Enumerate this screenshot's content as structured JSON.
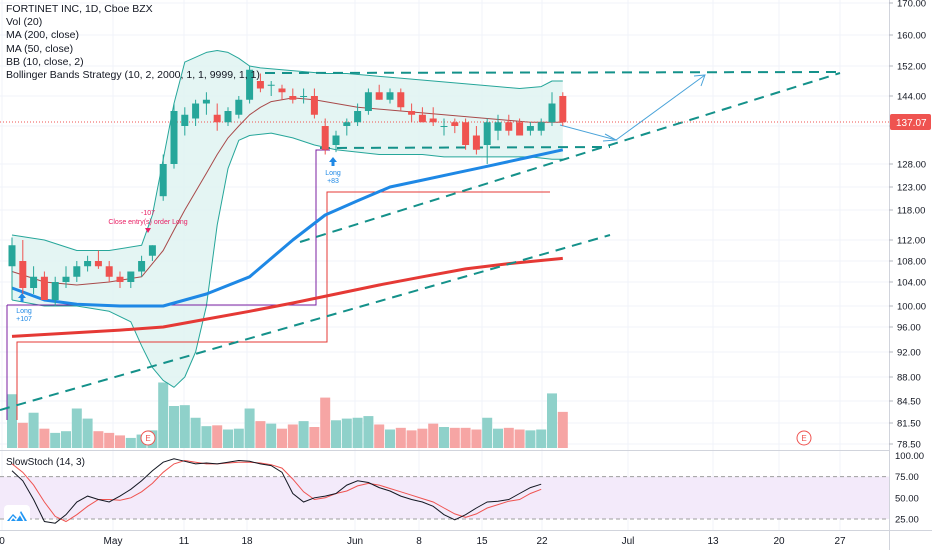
{
  "legend": {
    "symbol": "FORTINET INC, 1D, Cboe BZX",
    "volume": "Vol (20)",
    "ma200": "MA (200, close)",
    "ma50": "MA (50, close)",
    "bb": "BB (10, close, 2)",
    "strategy": "Bollinger Bands Strategy (10, 2, 2000, 1, 1, 9999, 1, 1)"
  },
  "colors": {
    "up": "#26a69a",
    "down": "#ef5350",
    "up_vol": "#8fd1ca",
    "down_vol": "#f6a5a4",
    "ma50": "#1e88e5",
    "ma200": "#e53935",
    "bb_fill": "#dff3f1",
    "bb_line": "#26a69a",
    "price_line": "#ef5350",
    "stoch_k": "#131722",
    "stoch_d": "#ef5350",
    "stoch_band": "#f3eafa",
    "purple": "#7b1fa2",
    "teal_dash": "#14918a"
  },
  "chart_data": [
    {
      "type": "candlestick",
      "title": "FORTINET INC, 1D, Cboe BZX",
      "ylim": [
        77,
        170
      ],
      "y_ticks": [
        "170.00",
        "160.00",
        "152.00",
        "144.00",
        "136.00",
        "128.00",
        "123.00",
        "118.00",
        "112.00",
        "108.00",
        "104.00",
        "100.00",
        "96.00",
        "92.00",
        "88.00",
        "84.50",
        "81.50",
        "78.50"
      ],
      "y_tick_values": [
        170,
        160,
        152,
        144,
        136,
        128,
        123,
        118,
        112,
        108,
        104,
        100,
        96,
        92,
        88,
        84.5,
        81.5,
        78.5
      ],
      "x_ticks": [
        "0",
        "May",
        "11",
        "18",
        "Jun",
        "8",
        "15",
        "22",
        "Jul",
        "13",
        "20",
        "27"
      ],
      "last_price": "137.07",
      "candles": [
        {
          "o": 107,
          "h": 112.5,
          "l": 101,
          "c": 111
        },
        {
          "o": 108,
          "h": 112,
          "l": 102,
          "c": 103
        },
        {
          "o": 103,
          "h": 107,
          "l": 102,
          "c": 105
        },
        {
          "o": 105,
          "h": 106,
          "l": 101,
          "c": 101
        },
        {
          "o": 101,
          "h": 105,
          "l": 100,
          "c": 104
        },
        {
          "o": 104,
          "h": 107,
          "l": 103,
          "c": 105
        },
        {
          "o": 105,
          "h": 108,
          "l": 104,
          "c": 107
        },
        {
          "o": 107,
          "h": 109,
          "l": 106,
          "c": 108
        },
        {
          "o": 108,
          "h": 110,
          "l": 106.5,
          "c": 107
        },
        {
          "o": 107,
          "h": 108,
          "l": 104,
          "c": 105
        },
        {
          "o": 105,
          "h": 106,
          "l": 103,
          "c": 104
        },
        {
          "o": 104,
          "h": 106,
          "l": 103,
          "c": 106
        },
        {
          "o": 106,
          "h": 109,
          "l": 105,
          "c": 108
        },
        {
          "o": 109,
          "h": 111,
          "l": 108,
          "c": 111
        },
        {
          "o": 121,
          "h": 130,
          "l": 120,
          "c": 128
        },
        {
          "o": 128,
          "h": 142,
          "l": 127,
          "c": 140
        },
        {
          "o": 136,
          "h": 141,
          "l": 134,
          "c": 139
        },
        {
          "o": 138,
          "h": 143,
          "l": 136,
          "c": 142
        },
        {
          "o": 142,
          "h": 145,
          "l": 139,
          "c": 143
        },
        {
          "o": 139,
          "h": 142,
          "l": 135,
          "c": 137
        },
        {
          "o": 137,
          "h": 141,
          "l": 136,
          "c": 140
        },
        {
          "o": 139,
          "h": 144,
          "l": 138,
          "c": 143
        },
        {
          "o": 143,
          "h": 152,
          "l": 142,
          "c": 151
        },
        {
          "o": 148,
          "h": 150,
          "l": 145,
          "c": 146
        },
        {
          "o": 147,
          "h": 148,
          "l": 144,
          "c": 147
        },
        {
          "o": 146,
          "h": 147,
          "l": 143,
          "c": 145
        },
        {
          "o": 144,
          "h": 146,
          "l": 142,
          "c": 143
        },
        {
          "o": 144,
          "h": 146,
          "l": 142,
          "c": 144
        },
        {
          "o": 144,
          "h": 146,
          "l": 138,
          "c": 139
        },
        {
          "o": 136,
          "h": 138,
          "l": 130,
          "c": 131
        },
        {
          "o": 132,
          "h": 135,
          "l": 130.5,
          "c": 134
        },
        {
          "o": 136,
          "h": 138,
          "l": 134,
          "c": 137
        },
        {
          "o": 137,
          "h": 142,
          "l": 136,
          "c": 140
        },
        {
          "o": 140,
          "h": 146,
          "l": 139,
          "c": 145
        },
        {
          "o": 145,
          "h": 147,
          "l": 143,
          "c": 143
        },
        {
          "o": 143,
          "h": 146,
          "l": 142,
          "c": 145
        },
        {
          "o": 145,
          "h": 146,
          "l": 140,
          "c": 141
        },
        {
          "o": 140,
          "h": 142,
          "l": 137,
          "c": 139
        },
        {
          "o": 139,
          "h": 141,
          "l": 137,
          "c": 137
        },
        {
          "o": 138,
          "h": 141,
          "l": 136,
          "c": 137
        },
        {
          "o": 136,
          "h": 138,
          "l": 134,
          "c": 136
        },
        {
          "o": 137,
          "h": 138,
          "l": 134.5,
          "c": 136
        },
        {
          "o": 137,
          "h": 138,
          "l": 131,
          "c": 132
        },
        {
          "o": 134,
          "h": 136,
          "l": 130,
          "c": 131
        },
        {
          "o": 132,
          "h": 138,
          "l": 128,
          "c": 137
        },
        {
          "o": 135,
          "h": 139,
          "l": 133,
          "c": 137
        },
        {
          "o": 137,
          "h": 139,
          "l": 134,
          "c": 135
        },
        {
          "o": 137,
          "h": 138,
          "l": 134,
          "c": 134
        },
        {
          "o": 135,
          "h": 137,
          "l": 134,
          "c": 136
        },
        {
          "o": 135,
          "h": 138,
          "l": 134,
          "c": 137
        },
        {
          "o": 137,
          "h": 145,
          "l": 136,
          "c": 142
        },
        {
          "o": 144,
          "h": 145,
          "l": 136,
          "c": 137
        }
      ],
      "volumes": [
        0.64,
        0.3,
        0.42,
        0.23,
        0.18,
        0.2,
        0.47,
        0.35,
        0.2,
        0.18,
        0.15,
        0.12,
        0.16,
        0.21,
        0.78,
        0.5,
        0.51,
        0.36,
        0.26,
        0.27,
        0.22,
        0.23,
        0.47,
        0.32,
        0.29,
        0.23,
        0.28,
        0.32,
        0.25,
        0.6,
        0.33,
        0.35,
        0.36,
        0.38,
        0.28,
        0.22,
        0.24,
        0.21,
        0.23,
        0.29,
        0.25,
        0.24,
        0.24,
        0.22,
        0.36,
        0.23,
        0.24,
        0.22,
        0.21,
        0.22,
        0.65,
        0.43
      ],
      "ma50": [
        [
          0,
          103
        ],
        [
          3,
          101
        ],
        [
          6,
          100.3
        ],
        [
          10,
          100
        ],
        [
          14,
          100
        ],
        [
          18,
          102
        ],
        [
          22,
          105
        ],
        [
          26,
          112
        ],
        [
          29,
          117
        ],
        [
          32,
          120
        ],
        [
          35,
          123
        ],
        [
          38,
          124.5
        ],
        [
          41,
          126
        ],
        [
          44,
          127.5
        ],
        [
          48,
          129.5
        ],
        [
          51,
          131
        ]
      ],
      "ma200": [
        [
          0,
          94.5
        ],
        [
          5,
          95
        ],
        [
          10,
          95.5
        ],
        [
          14,
          96
        ],
        [
          18,
          97.5
        ],
        [
          22,
          99
        ],
        [
          26,
          100.5
        ],
        [
          30,
          102
        ],
        [
          34,
          103.5
        ],
        [
          38,
          105
        ],
        [
          42,
          106.5
        ],
        [
          46,
          107.5
        ],
        [
          51,
          108.5
        ]
      ],
      "bb_upper": [
        [
          0,
          113
        ],
        [
          3,
          112
        ],
        [
          6,
          110
        ],
        [
          9,
          110
        ],
        [
          12,
          111
        ],
        [
          13,
          117
        ],
        [
          14,
          129
        ],
        [
          15,
          142
        ],
        [
          16,
          153
        ],
        [
          18,
          155.5
        ],
        [
          19,
          156
        ],
        [
          20,
          155.5
        ],
        [
          21,
          154
        ],
        [
          22,
          152
        ],
        [
          23,
          151.5
        ],
        [
          25,
          151
        ],
        [
          27,
          150.5
        ],
        [
          29,
          150
        ],
        [
          31,
          150
        ],
        [
          33,
          149.5
        ],
        [
          35,
          149
        ],
        [
          37,
          148.5
        ],
        [
          39,
          148
        ],
        [
          41,
          147.5
        ],
        [
          43,
          147
        ],
        [
          45,
          146.5
        ],
        [
          47,
          146
        ],
        [
          49,
          146.5
        ],
        [
          50,
          148
        ],
        [
          51,
          148
        ]
      ],
      "bb_middle": [
        [
          0,
          106
        ],
        [
          3,
          104
        ],
        [
          6,
          103.5
        ],
        [
          9,
          104
        ],
        [
          12,
          105
        ],
        [
          14,
          110
        ],
        [
          15,
          114
        ],
        [
          16,
          118
        ],
        [
          17,
          122
        ],
        [
          18,
          126
        ],
        [
          19,
          130
        ],
        [
          20,
          133.5
        ],
        [
          21,
          136
        ],
        [
          22,
          139
        ],
        [
          23,
          141
        ],
        [
          24,
          142.5
        ],
        [
          26,
          143.5
        ],
        [
          28,
          143
        ],
        [
          30,
          142
        ],
        [
          32,
          141
        ],
        [
          34,
          140.5
        ],
        [
          36,
          140
        ],
        [
          38,
          139.5
        ],
        [
          40,
          139
        ],
        [
          42,
          138.5
        ],
        [
          44,
          138
        ],
        [
          46,
          137.5
        ],
        [
          48,
          137
        ],
        [
          50,
          137
        ],
        [
          51,
          137
        ]
      ],
      "bb_lower": [
        [
          0,
          101
        ],
        [
          3,
          100
        ],
        [
          6,
          100
        ],
        [
          9,
          99
        ],
        [
          11,
          97
        ],
        [
          12,
          93
        ],
        [
          13,
          89.5
        ],
        [
          14,
          87.5
        ],
        [
          15,
          86.5
        ],
        [
          16,
          88
        ],
        [
          17,
          92
        ],
        [
          18,
          100
        ],
        [
          19,
          115
        ],
        [
          20,
          127
        ],
        [
          21,
          133
        ],
        [
          22,
          134
        ],
        [
          24,
          134.5
        ],
        [
          26,
          133.5
        ],
        [
          28,
          132
        ],
        [
          30,
          131
        ],
        [
          32,
          130.5
        ],
        [
          34,
          130
        ],
        [
          36,
          130
        ],
        [
          38,
          130
        ],
        [
          40,
          129.5
        ],
        [
          42,
          129.5
        ],
        [
          44,
          129.5
        ],
        [
          46,
          129.5
        ],
        [
          48,
          129.5
        ],
        [
          50,
          129
        ],
        [
          51,
          129
        ]
      ],
      "stoch_ylim": [
        12,
        104
      ],
      "stoch_ticks": [
        "100.00",
        "75.00",
        "50.00",
        "25.00"
      ],
      "stoch_tick_values": [
        100,
        75,
        50,
        25
      ],
      "stoch_k": [
        [
          0,
          82
        ],
        [
          1,
          70
        ],
        [
          2,
          48
        ],
        [
          3,
          22
        ],
        [
          4,
          20
        ],
        [
          5,
          30
        ],
        [
          6,
          45
        ],
        [
          7,
          52
        ],
        [
          8,
          48
        ],
        [
          9,
          45
        ],
        [
          10,
          52
        ],
        [
          11,
          60
        ],
        [
          12,
          70
        ],
        [
          13,
          82
        ],
        [
          14,
          92
        ],
        [
          15,
          96
        ],
        [
          16,
          93
        ],
        [
          17,
          90
        ],
        [
          18,
          91
        ],
        [
          19,
          90
        ],
        [
          20,
          92
        ],
        [
          21,
          94
        ],
        [
          22,
          93
        ],
        [
          23,
          90
        ],
        [
          24,
          88
        ],
        [
          25,
          80
        ],
        [
          26,
          55
        ],
        [
          27,
          45
        ],
        [
          28,
          50
        ],
        [
          29,
          52
        ],
        [
          30,
          55
        ],
        [
          31,
          65
        ],
        [
          32,
          70
        ],
        [
          33,
          68
        ],
        [
          34,
          62
        ],
        [
          35,
          58
        ],
        [
          36,
          52
        ],
        [
          37,
          48
        ],
        [
          38,
          45
        ],
        [
          39,
          40
        ],
        [
          40,
          30
        ],
        [
          41,
          24
        ],
        [
          42,
          30
        ],
        [
          43,
          38
        ],
        [
          44,
          45
        ],
        [
          45,
          46
        ],
        [
          46,
          48
        ],
        [
          47,
          55
        ],
        [
          48,
          62
        ],
        [
          49,
          66
        ]
      ],
      "stoch_d": [
        [
          0,
          90
        ],
        [
          1,
          80
        ],
        [
          2,
          65
        ],
        [
          3,
          45
        ],
        [
          4,
          28
        ],
        [
          5,
          22
        ],
        [
          6,
          30
        ],
        [
          7,
          40
        ],
        [
          8,
          48
        ],
        [
          9,
          48
        ],
        [
          10,
          47
        ],
        [
          11,
          50
        ],
        [
          12,
          57
        ],
        [
          13,
          67
        ],
        [
          14,
          80
        ],
        [
          15,
          90
        ],
        [
          16,
          94
        ],
        [
          17,
          92
        ],
        [
          18,
          90
        ],
        [
          19,
          90
        ],
        [
          20,
          91
        ],
        [
          21,
          92
        ],
        [
          22,
          92
        ],
        [
          23,
          91
        ],
        [
          24,
          89
        ],
        [
          25,
          85
        ],
        [
          26,
          72
        ],
        [
          27,
          57
        ],
        [
          28,
          48
        ],
        [
          29,
          50
        ],
        [
          30,
          55
        ],
        [
          31,
          58
        ],
        [
          32,
          64
        ],
        [
          33,
          67
        ],
        [
          34,
          65
        ],
        [
          35,
          61
        ],
        [
          36,
          57
        ],
        [
          37,
          53
        ],
        [
          38,
          49
        ],
        [
          39,
          45
        ],
        [
          40,
          38
        ],
        [
          41,
          31
        ],
        [
          42,
          27
        ],
        [
          43,
          31
        ],
        [
          44,
          38
        ],
        [
          45,
          42
        ],
        [
          46,
          46
        ],
        [
          47,
          48
        ],
        [
          48,
          55
        ],
        [
          49,
          60
        ]
      ],
      "annotations": {
        "long_1": "Long",
        "long_1_profit": "+107",
        "close_entry": "Close entry(s) order Long",
        "close_entry_value": "-107",
        "long_2": "Long",
        "long_2_profit": "+83",
        "earnings_1": "E",
        "earnings_2": "E"
      }
    }
  ]
}
